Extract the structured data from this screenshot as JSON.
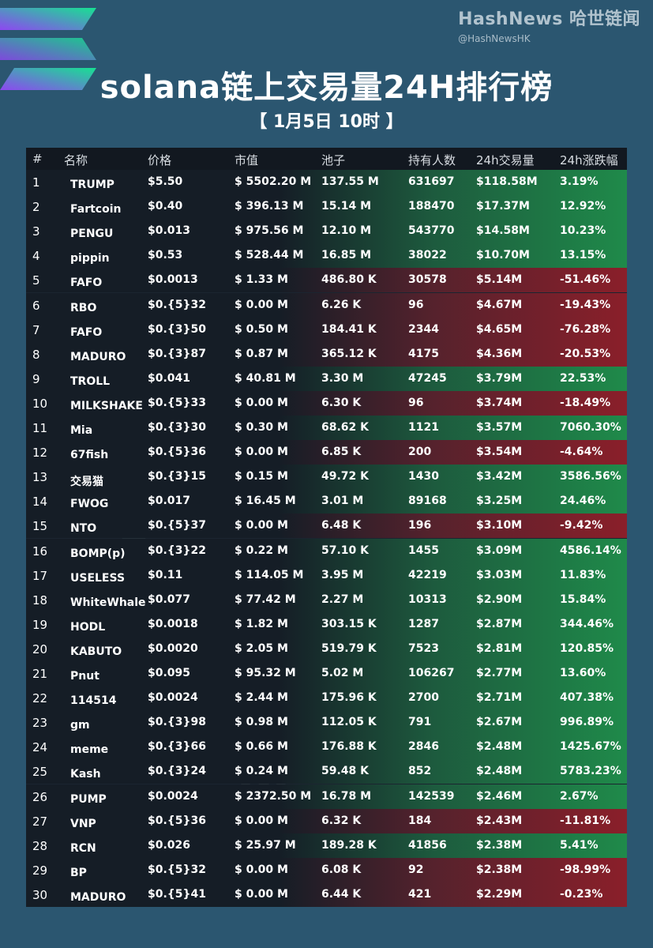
{
  "brand": {
    "name": "HashNews 哈世链闻",
    "handle": "@HashNewsHK"
  },
  "title": "solana链上交易量24H排行榜",
  "subtitle": "【 1月5日 10时 】",
  "colors": {
    "up": "#1f8a4a",
    "down": "#8a1f2a",
    "background": "#2b5670"
  },
  "table": {
    "headers": [
      "#",
      "名称",
      "价格",
      "市值",
      "池子",
      "持有人数",
      "24h交易量",
      "24h涨跌幅"
    ],
    "rows": [
      {
        "rank": "1",
        "name": "TRUMP",
        "price": "$5.50",
        "mcap": "$ 5502.20 M",
        "pool": "137.55 M",
        "holders": "631697",
        "volume": "$118.58M",
        "change": "3.19%",
        "trend": "up"
      },
      {
        "rank": "2",
        "name": "Fartcoin",
        "price": "$0.40",
        "mcap": "$ 396.13 M",
        "pool": "15.14 M",
        "holders": "188470",
        "volume": "$17.37M",
        "change": "12.92%",
        "trend": "up"
      },
      {
        "rank": "3",
        "name": "PENGU",
        "price": "$0.013",
        "mcap": "$ 975.56 M",
        "pool": "12.10 M",
        "holders": "543770",
        "volume": "$14.58M",
        "change": "10.23%",
        "trend": "up"
      },
      {
        "rank": "4",
        "name": "pippin",
        "price": "$0.53",
        "mcap": "$ 528.44 M",
        "pool": "16.85 M",
        "holders": "38022",
        "volume": "$10.70M",
        "change": "13.15%",
        "trend": "up"
      },
      {
        "rank": "5",
        "name": "FAFO",
        "price": "$0.0013",
        "mcap": "$ 1.33 M",
        "pool": "486.80 K",
        "holders": "30578",
        "volume": "$5.14M",
        "change": "-51.46%",
        "trend": "down"
      },
      {
        "rank": "6",
        "name": "RBO",
        "price": "$0.{5}32",
        "mcap": "$ 0.00 M",
        "pool": "6.26 K",
        "holders": "96",
        "volume": "$4.67M",
        "change": "-19.43%",
        "trend": "down"
      },
      {
        "rank": "7",
        "name": "FAFO",
        "price": "$0.{3}50",
        "mcap": "$ 0.50 M",
        "pool": "184.41 K",
        "holders": "2344",
        "volume": "$4.65M",
        "change": "-76.28%",
        "trend": "down"
      },
      {
        "rank": "8",
        "name": "MADURO",
        "price": "$0.{3}87",
        "mcap": "$ 0.87 M",
        "pool": "365.12 K",
        "holders": "4175",
        "volume": "$4.36M",
        "change": "-20.53%",
        "trend": "down"
      },
      {
        "rank": "9",
        "name": "TROLL",
        "price": "$0.041",
        "mcap": "$ 40.81 M",
        "pool": "3.30 M",
        "holders": "47245",
        "volume": "$3.79M",
        "change": "22.53%",
        "trend": "up"
      },
      {
        "rank": "10",
        "name": "MILKSHAKE",
        "price": "$0.{5}33",
        "mcap": "$ 0.00 M",
        "pool": "6.30 K",
        "holders": "96",
        "volume": "$3.74M",
        "change": "-18.49%",
        "trend": "down"
      },
      {
        "rank": "11",
        "name": "Mia",
        "price": "$0.{3}30",
        "mcap": "$ 0.30 M",
        "pool": "68.62 K",
        "holders": "1121",
        "volume": "$3.57M",
        "change": "7060.30%",
        "trend": "up"
      },
      {
        "rank": "12",
        "name": "67fish",
        "price": "$0.{5}36",
        "mcap": "$ 0.00 M",
        "pool": "6.85 K",
        "holders": "200",
        "volume": "$3.54M",
        "change": "-4.64%",
        "trend": "down"
      },
      {
        "rank": "13",
        "name": "交易猫",
        "price": "$0.{3}15",
        "mcap": "$ 0.15 M",
        "pool": "49.72 K",
        "holders": "1430",
        "volume": "$3.42M",
        "change": "3586.56%",
        "trend": "up"
      },
      {
        "rank": "14",
        "name": "FWOG",
        "price": "$0.017",
        "mcap": "$ 16.45 M",
        "pool": "3.01 M",
        "holders": "89168",
        "volume": "$3.25M",
        "change": "24.46%",
        "trend": "up"
      },
      {
        "rank": "15",
        "name": "NTO",
        "price": "$0.{5}37",
        "mcap": "$ 0.00 M",
        "pool": "6.48 K",
        "holders": "196",
        "volume": "$3.10M",
        "change": "-9.42%",
        "trend": "down"
      },
      {
        "rank": "16",
        "name": "BOMP(p)",
        "price": "$0.{3}22",
        "mcap": "$ 0.22 M",
        "pool": "57.10 K",
        "holders": "1455",
        "volume": "$3.09M",
        "change": "4586.14%",
        "trend": "up"
      },
      {
        "rank": "17",
        "name": "USELESS",
        "price": "$0.11",
        "mcap": "$ 114.05 M",
        "pool": "3.95 M",
        "holders": "42219",
        "volume": "$3.03M",
        "change": "11.83%",
        "trend": "up"
      },
      {
        "rank": "18",
        "name": "WhiteWhale",
        "price": "$0.077",
        "mcap": "$ 77.42 M",
        "pool": "2.27 M",
        "holders": "10313",
        "volume": "$2.90M",
        "change": "15.84%",
        "trend": "up"
      },
      {
        "rank": "19",
        "name": "HODL",
        "price": "$0.0018",
        "mcap": "$ 1.82 M",
        "pool": "303.15 K",
        "holders": "1287",
        "volume": "$2.87M",
        "change": "344.46%",
        "trend": "up"
      },
      {
        "rank": "20",
        "name": "KABUTO",
        "price": "$0.0020",
        "mcap": "$ 2.05 M",
        "pool": "519.79 K",
        "holders": "7523",
        "volume": "$2.81M",
        "change": "120.85%",
        "trend": "up"
      },
      {
        "rank": "21",
        "name": "Pnut",
        "price": "$0.095",
        "mcap": "$ 95.32 M",
        "pool": "5.02 M",
        "holders": "106267",
        "volume": "$2.77M",
        "change": "13.60%",
        "trend": "up"
      },
      {
        "rank": "22",
        "name": "114514",
        "price": "$0.0024",
        "mcap": "$ 2.44 M",
        "pool": "175.96 K",
        "holders": "2700",
        "volume": "$2.71M",
        "change": "407.38%",
        "trend": "up"
      },
      {
        "rank": "23",
        "name": "gm",
        "price": "$0.{3}98",
        "mcap": "$ 0.98 M",
        "pool": "112.05 K",
        "holders": "791",
        "volume": "$2.67M",
        "change": "996.89%",
        "trend": "up"
      },
      {
        "rank": "24",
        "name": "meme",
        "price": "$0.{3}66",
        "mcap": "$ 0.66 M",
        "pool": "176.88 K",
        "holders": "2846",
        "volume": "$2.48M",
        "change": "1425.67%",
        "trend": "up"
      },
      {
        "rank": "25",
        "name": "Kash",
        "price": "$0.{3}24",
        "mcap": "$ 0.24 M",
        "pool": "59.48 K",
        "holders": "852",
        "volume": "$2.48M",
        "change": "5783.23%",
        "trend": "up"
      },
      {
        "rank": "26",
        "name": "PUMP",
        "price": "$0.0024",
        "mcap": "$ 2372.50 M",
        "pool": "16.78 M",
        "holders": "142539",
        "volume": "$2.46M",
        "change": "2.67%",
        "trend": "up"
      },
      {
        "rank": "27",
        "name": "VNP",
        "price": "$0.{5}36",
        "mcap": "$ 0.00 M",
        "pool": "6.32 K",
        "holders": "184",
        "volume": "$2.43M",
        "change": "-11.81%",
        "trend": "down"
      },
      {
        "rank": "28",
        "name": "RCN",
        "price": "$0.026",
        "mcap": "$ 25.97 M",
        "pool": "189.28 K",
        "holders": "41856",
        "volume": "$2.38M",
        "change": "5.41%",
        "trend": "up"
      },
      {
        "rank": "29",
        "name": "BP",
        "price": "$0.{5}32",
        "mcap": "$ 0.00 M",
        "pool": "6.08 K",
        "holders": "92",
        "volume": "$2.38M",
        "change": "-98.99%",
        "trend": "down"
      },
      {
        "rank": "30",
        "name": "MADURO",
        "price": "$0.{5}41",
        "mcap": "$ 0.00 M",
        "pool": "6.44 K",
        "holders": "421",
        "volume": "$2.29M",
        "change": "-0.23%",
        "trend": "down"
      }
    ]
  }
}
